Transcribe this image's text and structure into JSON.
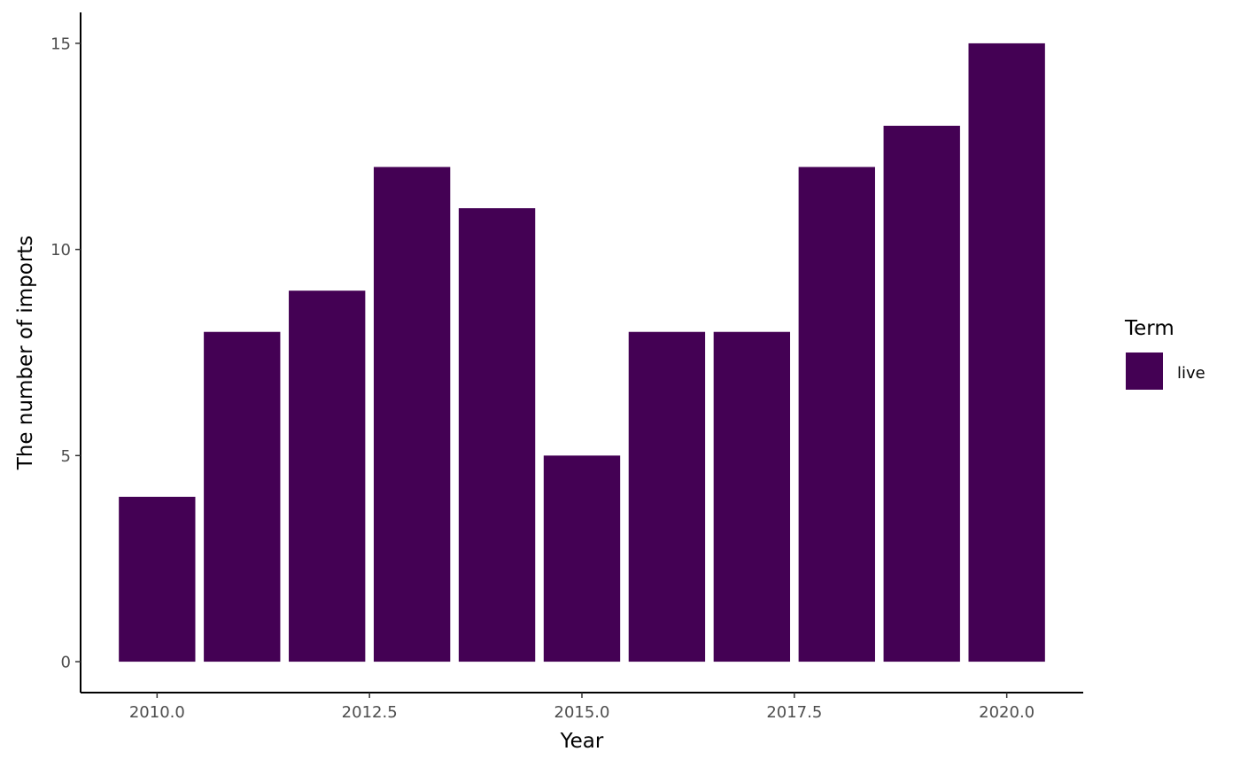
{
  "chart_data": {
    "type": "bar",
    "x": [
      2010,
      2011,
      2012,
      2013,
      2014,
      2015,
      2016,
      2017,
      2018,
      2019,
      2020
    ],
    "series": [
      {
        "name": "live",
        "values": [
          4,
          8,
          9,
          12,
          11,
          5,
          8,
          8,
          12,
          13,
          15
        ],
        "color": "#440154"
      }
    ],
    "xlabel": "Year",
    "ylabel": "The number of imports",
    "xlim": [
      2009.1,
      2020.9
    ],
    "ylim": [
      -0.75,
      15.75
    ],
    "xticks": [
      2010,
      2012.5,
      2015,
      2017.5,
      2020
    ],
    "xtick_labels": [
      "2010.0",
      "2012.5",
      "2015.0",
      "2017.5",
      "2020.0"
    ],
    "yticks": [
      0,
      5,
      10,
      15
    ],
    "ytick_labels": [
      "0",
      "5",
      "10",
      "15"
    ],
    "grid": false,
    "legend": {
      "title": "Term",
      "position": "right",
      "entries": [
        {
          "label": "live",
          "color": "#440154"
        }
      ]
    }
  }
}
